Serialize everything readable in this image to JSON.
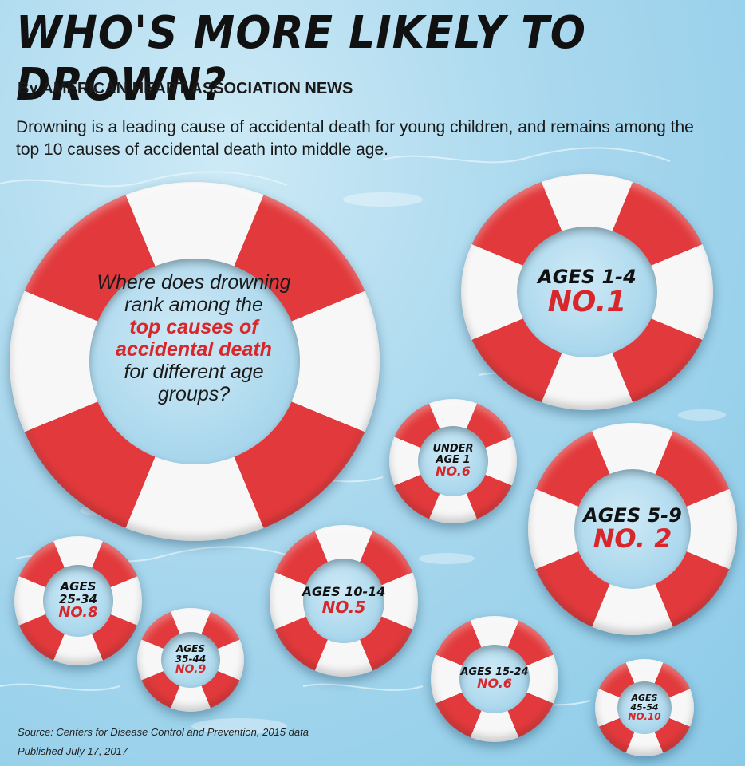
{
  "title": "WHO'S MORE LIKELY TO DROWN?",
  "byline": "By AMERICAN HEART ASSOCIATION NEWS",
  "intro": "Drowning is a leading cause of accidental death for young children, and remains among the top 10 causes of accidental death into middle age.",
  "question": {
    "part1": "Where does drowning rank among the",
    "highlight": "top causes of accidental death",
    "part2": "for different age groups?"
  },
  "colors": {
    "ring_red": "#e23a3c",
    "ring_white": "#f7f7f7",
    "rank_red": "#d8262a",
    "water": "#a9d8ee"
  },
  "rings": [
    {
      "age": "AGES 1-4",
      "rank": "NO.1"
    },
    {
      "age": "UNDER AGE 1",
      "rank": "NO.6"
    },
    {
      "age": "AGES 5-9",
      "rank": "NO. 2"
    },
    {
      "age": "AGES 25-34",
      "rank": "NO.8"
    },
    {
      "age": "AGES 35-44",
      "rank": "NO.9"
    },
    {
      "age": "AGES 10-14",
      "rank": "NO.5"
    },
    {
      "age": "AGES 15-24",
      "rank": "NO.6"
    },
    {
      "age": "AGES 45-54",
      "rank": "NO.10"
    }
  ],
  "footer": {
    "source": "Source: Centers for Disease Control and Prevention, 2015 data",
    "published": "Published July 17, 2017"
  }
}
